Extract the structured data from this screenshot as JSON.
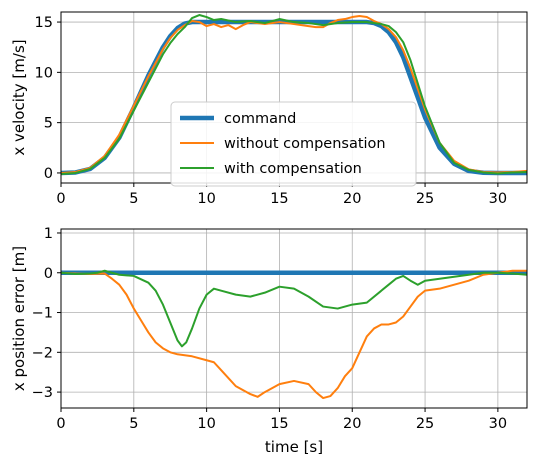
{
  "colors": {
    "command": "#1f77b4",
    "without": "#ff7f0e",
    "with": "#2ca02c",
    "grid": "#b0b0b0"
  },
  "chart_data": [
    {
      "type": "line",
      "xlabel": "",
      "ylabel": "x velocity [m/s]",
      "xlim": [
        0,
        32
      ],
      "ylim": [
        -1,
        16
      ],
      "xticks": [
        0,
        5,
        10,
        15,
        20,
        25,
        30
      ],
      "yticks": [
        0,
        5,
        10,
        15
      ],
      "grid": true,
      "legend": {
        "placement": "center",
        "entries": [
          "command",
          "without compensation",
          "with compensation"
        ]
      },
      "series": [
        {
          "name": "command",
          "color_key": "command",
          "width": 4.5,
          "x": [
            0,
            1,
            2,
            3,
            4,
            5,
            6,
            7,
            7.5,
            8,
            8.5,
            9,
            9.5,
            10,
            12,
            15,
            18,
            20,
            21,
            21.5,
            22,
            22.5,
            23,
            23.5,
            24,
            25,
            26,
            27,
            28,
            29,
            30,
            32
          ],
          "y": [
            0,
            0.05,
            0.4,
            1.5,
            3.5,
            6.5,
            9.7,
            12.5,
            13.6,
            14.4,
            14.85,
            15,
            15,
            15,
            15,
            15,
            15,
            15,
            15,
            14.9,
            14.6,
            14.0,
            13.0,
            11.5,
            9.5,
            5.5,
            2.5,
            0.9,
            0.2,
            0.02,
            0,
            0
          ]
        },
        {
          "name": "without compensation",
          "color_key": "without",
          "width": 2,
          "x": [
            0,
            1,
            2,
            3,
            4,
            5,
            6,
            7,
            7.5,
            8,
            8.5,
            9,
            9.5,
            10,
            10.5,
            11,
            11.5,
            12,
            12.5,
            13,
            14,
            15,
            16,
            17,
            17.5,
            18,
            18.5,
            19,
            19.5,
            20,
            20.5,
            21,
            21.5,
            22,
            22.5,
            23,
            23.5,
            24,
            25,
            26,
            27,
            28,
            29,
            30,
            31,
            32
          ],
          "y": [
            0,
            0.1,
            0.5,
            1.7,
            3.8,
            6.7,
            9.6,
            12.3,
            13.4,
            14.2,
            14.7,
            15.1,
            15.0,
            14.6,
            14.8,
            14.5,
            14.7,
            14.3,
            14.7,
            15.0,
            14.8,
            15.0,
            14.8,
            14.6,
            14.5,
            14.5,
            14.9,
            15.2,
            15.3,
            15.5,
            15.6,
            15.5,
            15.1,
            14.8,
            14.3,
            13.5,
            12.2,
            10.4,
            6.3,
            3.0,
            1.2,
            0.35,
            0.1,
            0.05,
            0.1,
            0.2
          ]
        },
        {
          "name": "with compensation",
          "color_key": "with",
          "width": 2,
          "x": [
            0,
            1,
            2,
            3,
            4,
            5,
            6,
            7,
            7.5,
            8,
            8.5,
            9,
            9.5,
            10,
            10.5,
            11,
            12,
            13,
            14,
            15,
            16,
            17,
            18,
            19,
            20,
            21,
            22,
            22.5,
            23,
            23.5,
            24,
            25,
            26,
            27,
            28,
            29,
            30,
            31,
            32
          ],
          "y": [
            -0.1,
            0,
            0.4,
            1.5,
            3.4,
            6.2,
            9.0,
            11.8,
            12.9,
            13.8,
            14.5,
            15.4,
            15.7,
            15.5,
            15.2,
            15.3,
            15.0,
            15.1,
            14.9,
            15.3,
            15.0,
            14.9,
            14.7,
            14.9,
            15.0,
            15.0,
            14.8,
            14.6,
            14.0,
            13.0,
            11.2,
            6.6,
            3.0,
            1.0,
            0.3,
            0.05,
            -0.05,
            0.05,
            0.1
          ]
        }
      ]
    },
    {
      "type": "line",
      "xlabel": "time [s]",
      "ylabel": "x position error [m]",
      "xlim": [
        0,
        32
      ],
      "ylim": [
        -3.4,
        1.1
      ],
      "xticks": [
        0,
        5,
        10,
        15,
        20,
        25,
        30
      ],
      "yticks": [
        1,
        0,
        -1,
        -2,
        -3
      ],
      "grid": true,
      "series": [
        {
          "name": "command",
          "color_key": "command",
          "width": 4.5,
          "x": [
            0,
            32
          ],
          "y": [
            0,
            0
          ]
        },
        {
          "name": "without compensation",
          "color_key": "without",
          "width": 2,
          "x": [
            0,
            1,
            2,
            3,
            3.5,
            4,
            4.5,
            5,
            5.5,
            6,
            6.5,
            7,
            7.5,
            8,
            9,
            10,
            10.5,
            11,
            12,
            13,
            13.5,
            14,
            15,
            16,
            17,
            17.5,
            18,
            18.5,
            19,
            19.5,
            20,
            20.5,
            21,
            21.5,
            22,
            22.5,
            23,
            23.5,
            24,
            24.5,
            25,
            26,
            27,
            28,
            29,
            30,
            31,
            32
          ],
          "y": [
            0,
            -0.02,
            -0.03,
            -0.02,
            -0.15,
            -0.3,
            -0.55,
            -0.9,
            -1.2,
            -1.5,
            -1.75,
            -1.9,
            -2.0,
            -2.05,
            -2.1,
            -2.2,
            -2.25,
            -2.45,
            -2.85,
            -3.05,
            -3.12,
            -3.0,
            -2.8,
            -2.72,
            -2.8,
            -3.0,
            -3.15,
            -3.1,
            -2.9,
            -2.6,
            -2.4,
            -2.0,
            -1.6,
            -1.4,
            -1.3,
            -1.3,
            -1.25,
            -1.1,
            -0.85,
            -0.6,
            -0.45,
            -0.4,
            -0.3,
            -0.2,
            -0.05,
            0,
            0.05,
            0.05
          ]
        },
        {
          "name": "with compensation",
          "color_key": "with",
          "width": 2,
          "x": [
            0,
            1,
            2,
            2.5,
            3,
            3.5,
            4,
            5,
            6,
            6.5,
            7,
            7.5,
            8,
            8.3,
            8.6,
            9,
            9.5,
            10,
            10.5,
            11,
            12,
            13,
            14,
            15,
            16,
            17,
            18,
            19,
            20,
            21,
            22,
            22.5,
            23,
            23.5,
            24,
            24.5,
            25,
            26,
            27,
            28,
            29,
            30,
            31,
            32
          ],
          "y": [
            0,
            -0.03,
            -0.02,
            0,
            0.05,
            0,
            -0.05,
            -0.08,
            -0.25,
            -0.45,
            -0.8,
            -1.25,
            -1.7,
            -1.85,
            -1.75,
            -1.4,
            -0.9,
            -0.55,
            -0.4,
            -0.45,
            -0.55,
            -0.6,
            -0.5,
            -0.35,
            -0.4,
            -0.6,
            -0.85,
            -0.9,
            -0.8,
            -0.75,
            -0.45,
            -0.3,
            -0.15,
            -0.08,
            -0.2,
            -0.3,
            -0.2,
            -0.15,
            -0.1,
            -0.05,
            0,
            0,
            -0.02,
            -0.05
          ]
        }
      ]
    }
  ]
}
